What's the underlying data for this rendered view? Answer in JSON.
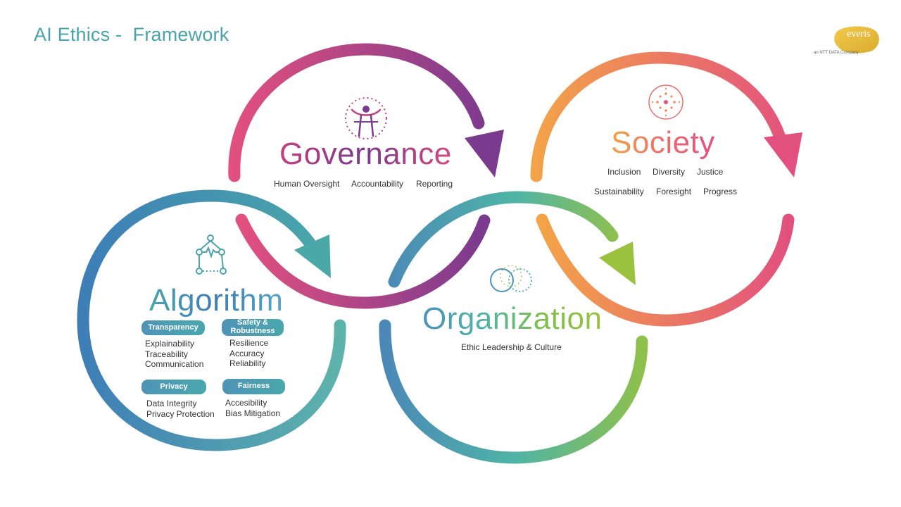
{
  "title": "AI Ethics -  Framework",
  "logo": {
    "name": "everis",
    "tagline": "an NTT DATA Company"
  },
  "colors": {
    "title": "#4aa3ac",
    "governance": [
      "#e2507f",
      "#7a3a8e"
    ],
    "society": [
      "#f3a447",
      "#e2507f"
    ],
    "algorithm": [
      "#3d7db7",
      "#4aa3ac"
    ],
    "organization": [
      "#4b92b7",
      "#9ac23f"
    ]
  },
  "governance": {
    "heading": "Governance",
    "icon": "human-figure-icon",
    "items": [
      "Human Oversight",
      "Accountability",
      "Reporting"
    ]
  },
  "society": {
    "heading": "Society",
    "icon": "network-burst-icon",
    "items_row1": [
      "Inclusion",
      "Diversity",
      "Justice"
    ],
    "items_row2": [
      "Sustainability",
      "Foresight",
      "Progress"
    ]
  },
  "algorithm": {
    "heading": "Algorithm",
    "icon": "graph-nodes-icon",
    "groups": [
      {
        "label": "Transparency",
        "items": [
          "Explainability",
          "Traceability",
          "Communication"
        ]
      },
      {
        "label": "Safety & Robustness",
        "items": [
          "Resilience",
          "Accuracy",
          "Reliability"
        ]
      },
      {
        "label": "Privacy",
        "items": [
          "Data Integrity",
          "Privacy Protection"
        ]
      },
      {
        "label": "Fairness",
        "items": [
          "Accesibility",
          "Bias Mitigation"
        ]
      }
    ]
  },
  "organization": {
    "heading": "Organization",
    "icon": "interlocking-circles-icon",
    "items": [
      "Ethic Leadership & Culture"
    ]
  }
}
